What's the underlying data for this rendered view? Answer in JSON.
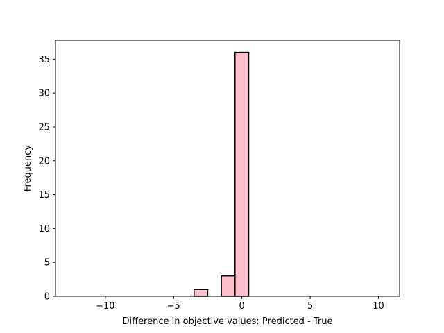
{
  "chart_data": {
    "type": "bar",
    "title": "",
    "xlabel": "Difference in objective values: Predicted - True",
    "ylabel": "Frequency",
    "xlim": [
      -13.65,
      11.55
    ],
    "ylim": [
      0,
      37.8
    ],
    "xticks": [
      -10,
      -5,
      0,
      5,
      10
    ],
    "xtick_labels": [
      "−10",
      "−5",
      "0",
      "5",
      "10"
    ],
    "yticks": [
      0,
      5,
      10,
      15,
      20,
      25,
      30,
      35
    ],
    "ytick_labels": [
      "0",
      "5",
      "10",
      "15",
      "20",
      "25",
      "30",
      "35"
    ],
    "bin_edges": [
      -12.5,
      -11.5,
      -10.5,
      -9.5,
      -8.5,
      -7.5,
      -6.5,
      -5.5,
      -4.5,
      -3.5,
      -2.5,
      -1.5,
      -0.5,
      0.5,
      1.5,
      2.5,
      3.5,
      4.5,
      5.5,
      6.5,
      7.5,
      8.5,
      9.5,
      10.5
    ],
    "values": [
      0,
      0,
      0,
      0,
      0,
      0,
      0,
      0,
      0,
      1,
      0,
      3,
      36,
      0,
      0,
      0,
      0,
      0,
      0,
      0,
      0,
      0,
      0
    ],
    "bar_color": "#ffc0cb",
    "edge_color": "#000000",
    "grid": false,
    "legend": "none"
  }
}
